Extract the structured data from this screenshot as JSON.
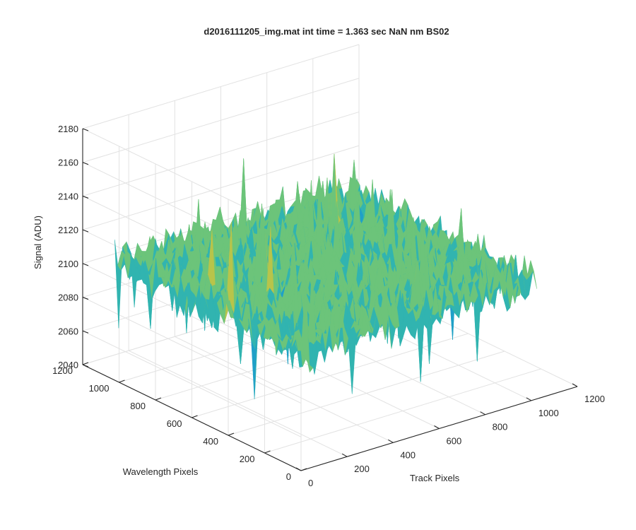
{
  "chart_data": {
    "type": "surface",
    "title": "d2016111205_img.mat int time = 1.363 sec  NaN nm BS02",
    "xlabel": "Track Pixels",
    "ylabel": "Wavelength Pixels",
    "zlabel": "Signal (ADU)",
    "xlim": [
      0,
      1200
    ],
    "ylim": [
      0,
      1200
    ],
    "zlim": [
      2040,
      2180
    ],
    "x_ticks": [
      0,
      200,
      400,
      600,
      800,
      1000,
      1200
    ],
    "y_ticks": [
      0,
      200,
      400,
      600,
      800,
      1000,
      1200
    ],
    "z_ticks": [
      2040,
      2060,
      2080,
      2100,
      2120,
      2140,
      2160,
      2180
    ],
    "x_extent": [
      0,
      1024
    ],
    "y_extent": [
      0,
      1024
    ],
    "z_mean": 2110,
    "z_spread": 20,
    "grid": true,
    "colormap": [
      "#0072bd",
      "#1fa0c8",
      "#31b4b0",
      "#6cc47a",
      "#b8c44a",
      "#e1c23d"
    ]
  }
}
